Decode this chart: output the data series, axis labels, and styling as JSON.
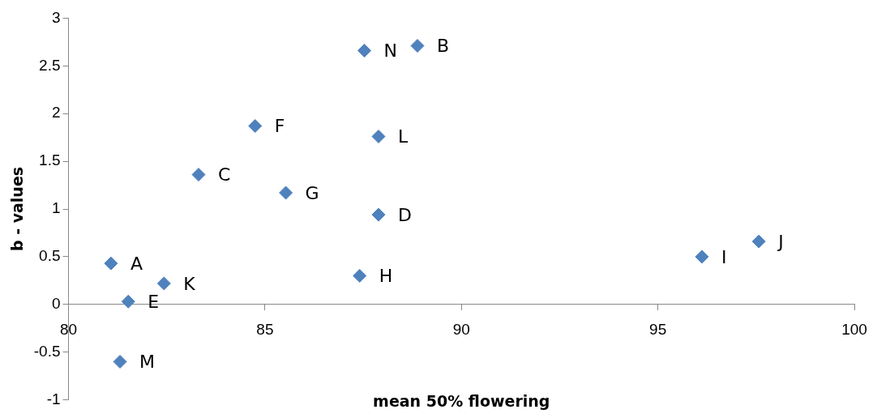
{
  "chart_data": {
    "type": "scatter",
    "xlabel": "mean 50% flowering",
    "ylabel": "b - values",
    "x": [
      81.08,
      88.88,
      83.31,
      87.89,
      81.52,
      84.75,
      85.53,
      87.41,
      96.12,
      97.57,
      82.43,
      87.89,
      81.31,
      87.53
    ],
    "series": [
      {
        "color": "#4f81bd",
        "values": [
          0.43,
          2.71,
          1.36,
          0.94,
          0.03,
          1.87,
          1.17,
          0.3,
          0.5,
          0.66,
          0.22,
          1.76,
          -0.6,
          2.66
        ]
      }
    ],
    "annotations": [
      {
        "text": "A",
        "x": 81.08,
        "y": 0.43
      },
      {
        "text": "B",
        "x": 88.88,
        "y": 2.71
      },
      {
        "text": "C",
        "x": 83.31,
        "y": 1.36
      },
      {
        "text": "D",
        "x": 87.89,
        "y": 0.94
      },
      {
        "text": "E",
        "x": 81.52,
        "y": 0.03
      },
      {
        "text": "F",
        "x": 84.75,
        "y": 1.87
      },
      {
        "text": "G",
        "x": 85.53,
        "y": 1.17
      },
      {
        "text": "H",
        "x": 87.41,
        "y": 0.3
      },
      {
        "text": "I",
        "x": 96.12,
        "y": 0.5
      },
      {
        "text": "J",
        "x": 97.57,
        "y": 0.66
      },
      {
        "text": "K",
        "x": 82.43,
        "y": 0.22
      },
      {
        "text": "L",
        "x": 87.89,
        "y": 1.76
      },
      {
        "text": "M",
        "x": 81.31,
        "y": -0.6
      },
      {
        "text": "N",
        "x": 87.53,
        "y": 2.66
      }
    ],
    "xlim": [
      80,
      100
    ],
    "xticks": [
      80,
      85,
      90,
      95,
      100
    ],
    "ylim": [
      -1,
      3
    ],
    "yticks": [
      -1,
      -0.5,
      0,
      0.5,
      1,
      1.5,
      2,
      2.5,
      3
    ],
    "marker": "diamond",
    "grid": false,
    "legend": false
  }
}
